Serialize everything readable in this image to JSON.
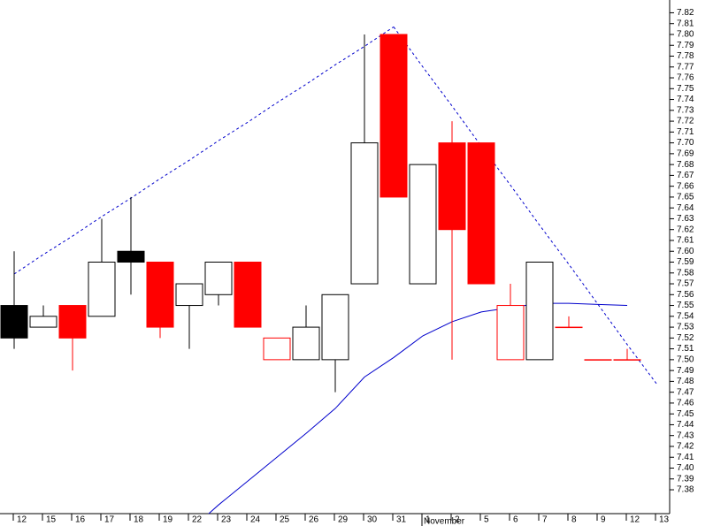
{
  "chart_data": {
    "type": "candlestick",
    "categories": [
      "12",
      "15",
      "16",
      "17",
      "18",
      "19",
      "22",
      "23",
      "24",
      "25",
      "26",
      "29",
      "30",
      "31",
      "1",
      "2",
      "5",
      "6",
      "7",
      "8",
      "9",
      "12",
      "13"
    ],
    "x_group_label": "November",
    "open": [
      7.55,
      7.53,
      7.55,
      7.54,
      7.6,
      7.59,
      7.55,
      7.56,
      7.59,
      7.52,
      7.5,
      7.5,
      7.57,
      7.8,
      7.57,
      7.7,
      7.7,
      7.55,
      7.5,
      7.53,
      7.5,
      7.5,
      null
    ],
    "high": [
      7.6,
      7.55,
      7.55,
      7.63,
      7.65,
      7.59,
      7.57,
      7.59,
      7.59,
      7.52,
      7.55,
      7.56,
      7.8,
      7.8,
      7.68,
      7.72,
      7.7,
      7.57,
      7.59,
      7.54,
      7.5,
      7.51,
      null
    ],
    "low": [
      7.51,
      7.53,
      7.49,
      7.54,
      7.56,
      7.52,
      7.51,
      7.55,
      7.53,
      7.5,
      7.5,
      7.47,
      7.57,
      7.65,
      7.57,
      7.5,
      7.57,
      7.5,
      7.5,
      7.53,
      7.5,
      7.5,
      null
    ],
    "close": [
      7.52,
      7.54,
      7.52,
      7.59,
      7.59,
      7.53,
      7.57,
      7.59,
      7.53,
      7.5,
      7.53,
      7.56,
      7.7,
      7.65,
      7.68,
      7.62,
      7.57,
      7.5,
      7.59,
      7.53,
      7.5,
      7.5,
      null
    ],
    "candle_styles": [
      "black",
      "white",
      "red",
      "white",
      "black",
      "red",
      "white",
      "white",
      "red",
      "red-hollow",
      "white",
      "white",
      "white",
      "red",
      "white",
      "red",
      "red",
      "red-hollow",
      "white",
      "red-hollow",
      "red-hollow",
      "red-hollow",
      null
    ],
    "style_colors": {
      "black": [
        "#000000",
        "#000000"
      ],
      "white": [
        "#ffffff",
        "#000000"
      ],
      "red": [
        "#ff0000",
        "#ff0000"
      ],
      "red-hollow": [
        "#ffffff",
        "#ff0000"
      ]
    },
    "series": [
      {
        "color": "#0000cc",
        "dashed": false,
        "values": [
          null,
          null,
          null,
          null,
          null,
          null,
          7.342,
          7.366,
          7.388,
          7.41,
          7.432,
          7.455,
          7.484,
          7.502,
          7.522,
          7.535,
          7.544,
          7.548,
          7.552,
          7.552,
          7.551,
          7.55,
          null
        ]
      },
      {
        "color": "#0000cc",
        "dashed": true,
        "values": [
          7.579,
          7.597,
          7.614,
          7.632,
          7.649,
          7.667,
          7.684,
          7.702,
          7.719,
          7.737,
          7.754,
          7.772,
          7.789,
          7.807,
          null,
          null,
          null,
          null,
          null,
          null,
          null,
          null,
          null
        ]
      },
      {
        "color": "#0000cc",
        "dashed": true,
        "values": [
          null,
          null,
          null,
          null,
          null,
          null,
          null,
          null,
          null,
          null,
          null,
          null,
          null,
          7.807,
          7.77,
          7.734,
          7.697,
          7.661,
          7.624,
          7.588,
          7.551,
          7.514,
          7.478
        ]
      }
    ],
    "ylim": [
      7.358,
      7.822
    ],
    "yticks": [
      7.38,
      7.39,
      {
        "value": 7.4,
        "label": "7.40"
      },
      7.41,
      7.42,
      7.43,
      7.44,
      7.45,
      7.46,
      7.47,
      7.48,
      7.49,
      {
        "value": 7.5,
        "label": "7.50"
      },
      7.51,
      7.52,
      7.53,
      7.54,
      7.55,
      7.56,
      7.57,
      7.58,
      7.59,
      {
        "value": 7.6,
        "label": "7.60"
      },
      7.61,
      7.62,
      7.63,
      7.64,
      7.65,
      7.66,
      7.67,
      7.68,
      7.69,
      {
        "value": 7.7,
        "label": "7.70"
      },
      7.71,
      7.72,
      7.73,
      7.74,
      7.75,
      7.76,
      7.77,
      7.78,
      7.79,
      {
        "value": 7.8,
        "label": "7.80"
      },
      7.81,
      7.82
    ],
    "axis_side": "right"
  }
}
